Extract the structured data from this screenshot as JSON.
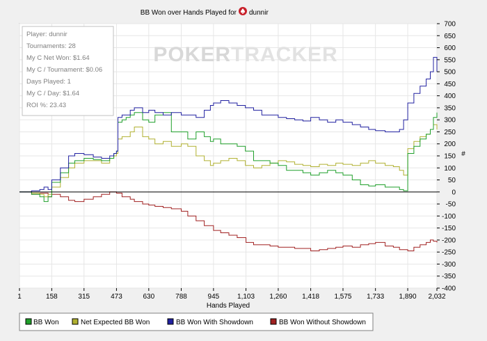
{
  "title": "BB Won over Hands Played for",
  "player_name": "dunnir",
  "watermark": {
    "part1": "POKER",
    "part2": "TRACKER"
  },
  "colors": {
    "bb_won": "#1f9f2a",
    "net_expected": "#b0b030",
    "showdown": "#2020a0",
    "non_showdown": "#a02020"
  },
  "info_box": [
    "Player: dunnir",
    "Tournaments: 28",
    "My C Net Won: $1.64",
    "My C / Tournament: $0.06",
    "Days Played: 1",
    "My C / Day: $1.64",
    "ROI %: 23.43"
  ],
  "chart_data": {
    "type": "line",
    "title": "BB Won over Hands Played for dunnir",
    "xlabel": "Hands Played",
    "ylabel": "#",
    "xlim": [
      1,
      2032
    ],
    "ylim": [
      -400,
      700
    ],
    "x_ticks": [
      1,
      158,
      315,
      473,
      630,
      788,
      945,
      1103,
      1260,
      1418,
      1575,
      1733,
      1890,
      2032
    ],
    "x_tick_labels": [
      "1",
      "158",
      "315",
      "473",
      "630",
      "788",
      "945",
      "1,103",
      "1,260",
      "1,418",
      "1,575",
      "1,733",
      "1,890",
      "2,032"
    ],
    "y_ticks": [
      700,
      650,
      600,
      550,
      500,
      450,
      400,
      350,
      300,
      250,
      200,
      150,
      100,
      50,
      0,
      -50,
      -100,
      -150,
      -200,
      -250,
      -300,
      -350,
      -400
    ],
    "y_tick_labels": [
      "700",
      "650",
      "600",
      "550",
      "500",
      "450",
      "400",
      "350",
      "300",
      "250",
      "200",
      "150",
      "100",
      "50",
      "0",
      "-50",
      "-100",
      "-150",
      "-200",
      "-250",
      "-300",
      "-350",
      "-400"
    ],
    "grid": true,
    "legend_position": "bottom",
    "series": [
      {
        "name": "BB Won",
        "color": "#1f9f2a",
        "x": [
          1,
          60,
          100,
          120,
          140,
          158,
          200,
          240,
          270,
          315,
          360,
          400,
          440,
          460,
          473,
          480,
          500,
          520,
          540,
          560,
          600,
          630,
          660,
          700,
          740,
          788,
          820,
          860,
          900,
          930,
          945,
          980,
          1020,
          1060,
          1100,
          1103,
          1140,
          1180,
          1220,
          1260,
          1300,
          1340,
          1380,
          1418,
          1460,
          1500,
          1540,
          1575,
          1620,
          1660,
          1700,
          1733,
          1780,
          1820,
          1850,
          1870,
          1890,
          1920,
          1950,
          1980,
          2000,
          2015,
          2032
        ],
        "y": [
          0,
          -10,
          -20,
          -40,
          -20,
          40,
          80,
          120,
          130,
          140,
          135,
          130,
          140,
          160,
          170,
          290,
          300,
          310,
          320,
          330,
          300,
          290,
          320,
          330,
          250,
          250,
          220,
          250,
          230,
          210,
          220,
          200,
          200,
          190,
          170,
          170,
          130,
          130,
          120,
          110,
          90,
          90,
          80,
          70,
          80,
          90,
          80,
          70,
          50,
          30,
          25,
          30,
          20,
          20,
          10,
          5,
          160,
          190,
          220,
          240,
          260,
          310,
          330
        ]
      },
      {
        "name": "Net Expected BB Won",
        "color": "#b0b030",
        "x": [
          1,
          60,
          100,
          120,
          140,
          158,
          200,
          240,
          270,
          315,
          360,
          400,
          440,
          460,
          473,
          480,
          500,
          540,
          560,
          600,
          630,
          660,
          700,
          740,
          788,
          820,
          860,
          900,
          930,
          945,
          980,
          1020,
          1060,
          1100,
          1103,
          1140,
          1180,
          1220,
          1260,
          1300,
          1340,
          1380,
          1418,
          1460,
          1500,
          1540,
          1575,
          1620,
          1660,
          1700,
          1733,
          1780,
          1820,
          1850,
          1870,
          1890,
          1920,
          1950,
          1980,
          2000,
          2015,
          2032
        ],
        "y": [
          0,
          -5,
          -10,
          -20,
          -10,
          20,
          60,
          100,
          120,
          130,
          130,
          120,
          140,
          150,
          160,
          220,
          230,
          250,
          270,
          230,
          220,
          200,
          210,
          190,
          200,
          190,
          150,
          130,
          110,
          120,
          130,
          140,
          130,
          110,
          110,
          100,
          110,
          120,
          130,
          125,
          115,
          110,
          105,
          115,
          110,
          120,
          115,
          110,
          120,
          130,
          120,
          110,
          105,
          90,
          70,
          180,
          210,
          230,
          240,
          260,
          280,
          260
        ]
      },
      {
        "name": "BB Won With Showdown",
        "color": "#2020a0",
        "x": [
          1,
          60,
          100,
          120,
          140,
          158,
          200,
          240,
          270,
          315,
          360,
          400,
          440,
          460,
          473,
          480,
          500,
          540,
          560,
          600,
          630,
          660,
          700,
          740,
          788,
          820,
          860,
          900,
          930,
          945,
          980,
          1020,
          1060,
          1100,
          1103,
          1140,
          1180,
          1220,
          1260,
          1300,
          1340,
          1380,
          1418,
          1460,
          1500,
          1540,
          1575,
          1620,
          1660,
          1700,
          1733,
          1780,
          1820,
          1850,
          1870,
          1890,
          1920,
          1950,
          1980,
          2000,
          2015,
          2032
        ],
        "y": [
          0,
          5,
          10,
          20,
          10,
          50,
          100,
          150,
          160,
          155,
          145,
          140,
          150,
          160,
          170,
          310,
          320,
          340,
          350,
          330,
          340,
          330,
          320,
          330,
          320,
          320,
          310,
          340,
          360,
          370,
          380,
          370,
          360,
          350,
          350,
          340,
          320,
          320,
          310,
          305,
          300,
          295,
          310,
          300,
          290,
          300,
          290,
          280,
          270,
          260,
          255,
          250,
          250,
          260,
          300,
          370,
          410,
          440,
          470,
          500,
          560,
          500
        ]
      },
      {
        "name": "BB Won Without Showdown",
        "color": "#a02020",
        "x": [
          1,
          60,
          100,
          140,
          158,
          200,
          240,
          270,
          315,
          360,
          400,
          440,
          473,
          500,
          540,
          560,
          600,
          630,
          660,
          700,
          740,
          788,
          820,
          860,
          900,
          945,
          980,
          1020,
          1060,
          1103,
          1140,
          1180,
          1220,
          1260,
          1300,
          1340,
          1380,
          1418,
          1460,
          1500,
          1540,
          1575,
          1620,
          1660,
          1700,
          1733,
          1780,
          1820,
          1850,
          1890,
          1920,
          1950,
          1980,
          2000,
          2015,
          2032
        ],
        "y": [
          0,
          -10,
          -5,
          -20,
          -10,
          -20,
          -35,
          -40,
          -30,
          -20,
          -10,
          0,
          -5,
          -20,
          -30,
          -40,
          -50,
          -55,
          -60,
          -65,
          -70,
          -80,
          -100,
          -120,
          -140,
          -160,
          -170,
          -180,
          -190,
          -210,
          -220,
          -220,
          -225,
          -230,
          -230,
          -235,
          -235,
          -245,
          -240,
          -235,
          -230,
          -225,
          -230,
          -220,
          -215,
          -210,
          -225,
          -230,
          -240,
          -245,
          -230,
          -220,
          -210,
          -200,
          -205,
          -210
        ]
      }
    ]
  }
}
